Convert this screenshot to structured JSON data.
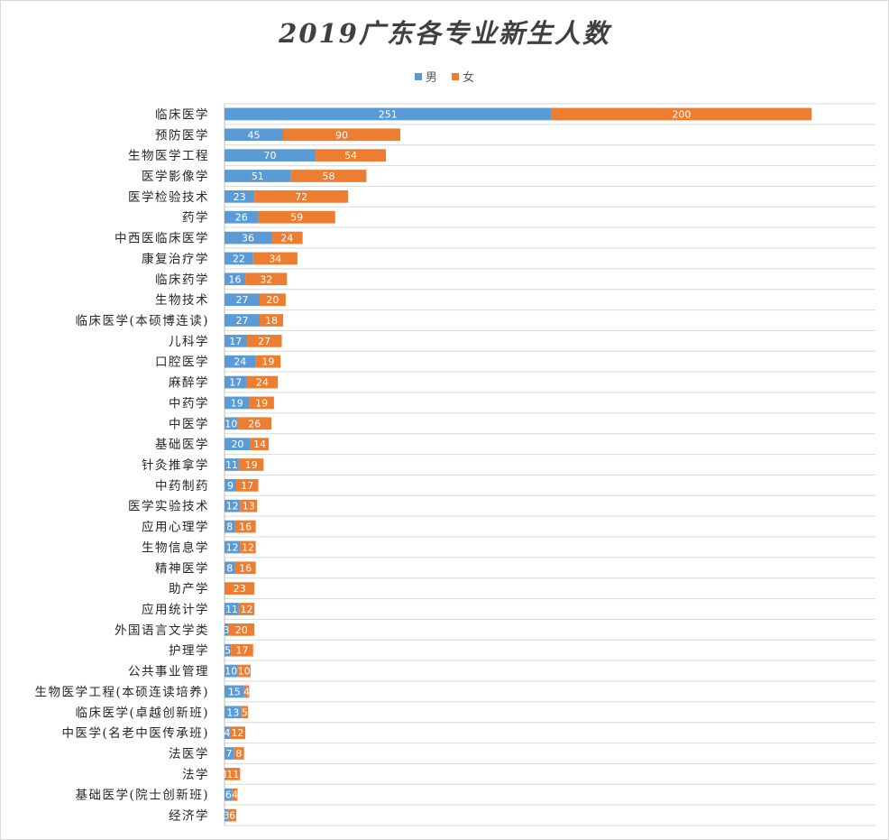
{
  "title": "2019广东各专业新生人数",
  "colors": {
    "male": "#5b9bd5",
    "female": "#ed7d31",
    "grid": "#d9d9d9",
    "axis": "#bfbfbf"
  },
  "chart_data": {
    "type": "bar",
    "orientation": "horizontal",
    "stacked": true,
    "legend_position": "top",
    "grid": true,
    "xlim": [
      0,
      500
    ],
    "categories": [
      "临床医学",
      "预防医学",
      "生物医学工程",
      "医学影像学",
      "医学检验技术",
      "药学",
      "中西医临床医学",
      "康复治疗学",
      "临床药学",
      "生物技术",
      "临床医学(本硕博连读)",
      "儿科学",
      "口腔医学",
      "麻醉学",
      "中药学",
      "中医学",
      "基础医学",
      "针灸推拿学",
      "中药制药",
      "医学实验技术",
      "应用心理学",
      "生物信息学",
      "精神医学",
      "助产学",
      "应用统计学",
      "外国语言文学类",
      "护理学",
      "公共事业管理",
      "生物医学工程(本硕连读培养)",
      "临床医学(卓越创新班)",
      "中医学(名老中医传承班)",
      "法医学",
      "法学",
      "基础医学(院士创新班)",
      "经济学"
    ],
    "series": [
      {
        "name": "男",
        "values": [
          251,
          45,
          70,
          51,
          23,
          26,
          36,
          22,
          16,
          27,
          27,
          17,
          24,
          17,
          19,
          10,
          20,
          11,
          9,
          12,
          8,
          12,
          8,
          0,
          11,
          3,
          5,
          10,
          15,
          13,
          4,
          7,
          1,
          6,
          3
        ]
      },
      {
        "name": "女",
        "values": [
          200,
          90,
          54,
          58,
          72,
          59,
          24,
          34,
          32,
          20,
          18,
          27,
          19,
          24,
          19,
          26,
          14,
          19,
          17,
          13,
          16,
          12,
          16,
          23,
          12,
          20,
          17,
          10,
          4,
          5,
          12,
          8,
          11,
          4,
          6
        ]
      }
    ]
  }
}
